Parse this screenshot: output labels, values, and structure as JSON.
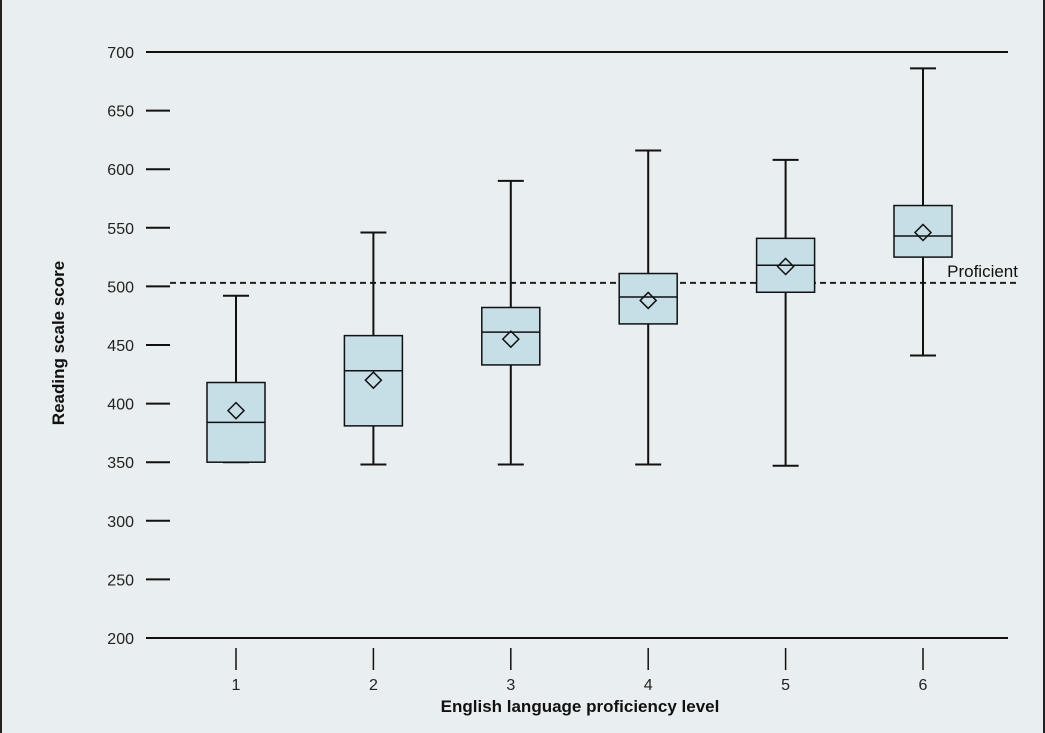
{
  "chart_data": {
    "type": "box",
    "xlabel": "English language proficiency level",
    "ylabel": "Reading scale score",
    "ylim": [
      200,
      700
    ],
    "yticks": [
      200,
      250,
      300,
      350,
      400,
      450,
      500,
      550,
      600,
      650,
      700
    ],
    "categories": [
      "1",
      "2",
      "3",
      "4",
      "5",
      "6"
    ],
    "boxes": [
      {
        "category": "1",
        "min": 350,
        "q1": 350,
        "median": 384,
        "q3": 418,
        "max": 492,
        "mean": 394
      },
      {
        "category": "2",
        "min": 348,
        "q1": 381,
        "median": 428,
        "q3": 458,
        "max": 546,
        "mean": 420
      },
      {
        "category": "3",
        "min": 348,
        "q1": 433,
        "median": 461,
        "q3": 482,
        "max": 590,
        "mean": 455
      },
      {
        "category": "4",
        "min": 348,
        "q1": 468,
        "median": 491,
        "q3": 511,
        "max": 616,
        "mean": 488
      },
      {
        "category": "5",
        "min": 347,
        "q1": 495,
        "median": 518,
        "q3": 541,
        "max": 608,
        "mean": 517
      },
      {
        "category": "6",
        "min": 441,
        "q1": 525,
        "median": 543,
        "q3": 569,
        "max": 686,
        "mean": 546
      }
    ],
    "reference_line": {
      "value": 503,
      "label": "Proficient",
      "style": "dashed"
    },
    "box_color": "#c6dee5",
    "background_color": "#e9eff0",
    "grid": false
  }
}
